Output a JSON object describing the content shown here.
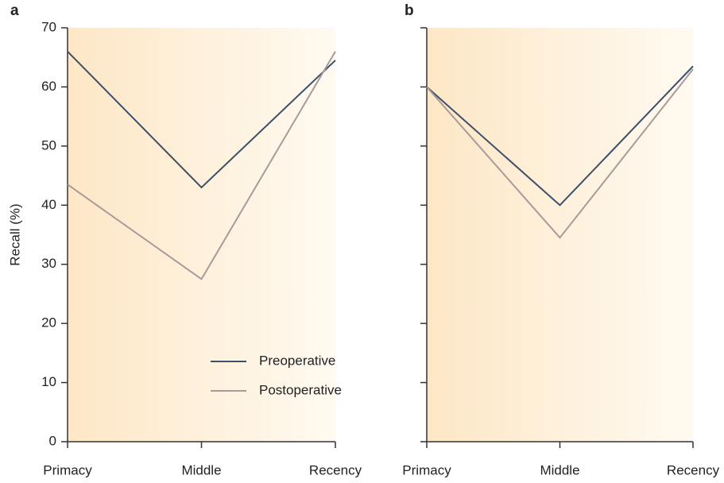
{
  "chart_data": [
    {
      "type": "line",
      "label": "a",
      "ylabel": "Recall (%)",
      "categories": [
        "Primacy",
        "Middle",
        "Recency"
      ],
      "series": [
        {
          "name": "Preoperative",
          "color": "#3d5068",
          "values": [
            66,
            43,
            64.5
          ]
        },
        {
          "name": "Postoperative",
          "color": "#a89a9a",
          "values": [
            43.5,
            27.5,
            66
          ]
        }
      ],
      "ylim": [
        0,
        70
      ],
      "yticks": [
        0,
        10,
        20,
        30,
        40,
        50,
        60,
        70
      ],
      "show_ytick_labels": true,
      "legend": "lower-right"
    },
    {
      "type": "line",
      "label": "b",
      "categories": [
        "Primacy",
        "Middle",
        "Recency"
      ],
      "series": [
        {
          "color": "#3d5068",
          "values": [
            60,
            40,
            63.5
          ]
        },
        {
          "color": "#a89a9a",
          "values": [
            60,
            34.5,
            63
          ]
        }
      ],
      "ylim": [
        0,
        70
      ],
      "yticks": [
        0,
        10,
        20,
        30,
        40,
        50,
        60,
        70
      ],
      "show_ytick_labels": false,
      "legend": "none"
    }
  ]
}
